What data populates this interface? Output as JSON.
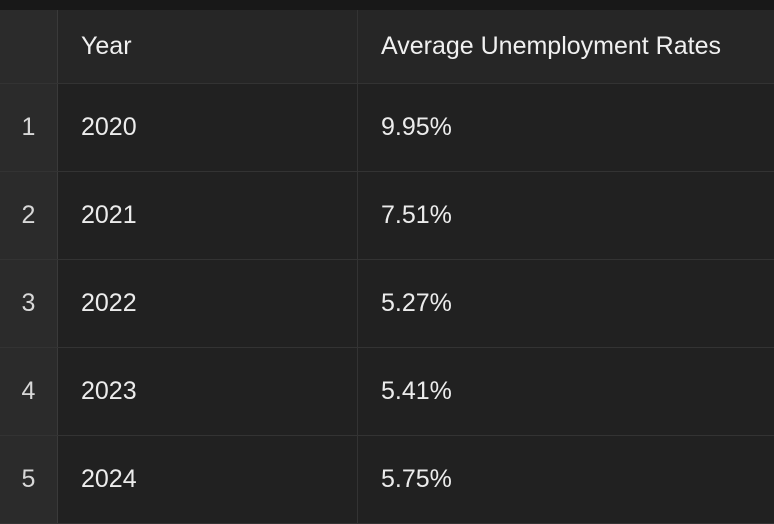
{
  "table": {
    "columns": [
      "",
      "Year",
      "Average Unemployment Rates"
    ],
    "rows": [
      {
        "index": "1",
        "year": "2020",
        "rate": "9.95%"
      },
      {
        "index": "2",
        "year": "2021",
        "rate": "7.51%"
      },
      {
        "index": "3",
        "year": "2022",
        "rate": "5.27%"
      },
      {
        "index": "4",
        "year": "2023",
        "rate": "5.41%"
      },
      {
        "index": "5",
        "year": "2024",
        "rate": "5.75%"
      }
    ]
  }
}
